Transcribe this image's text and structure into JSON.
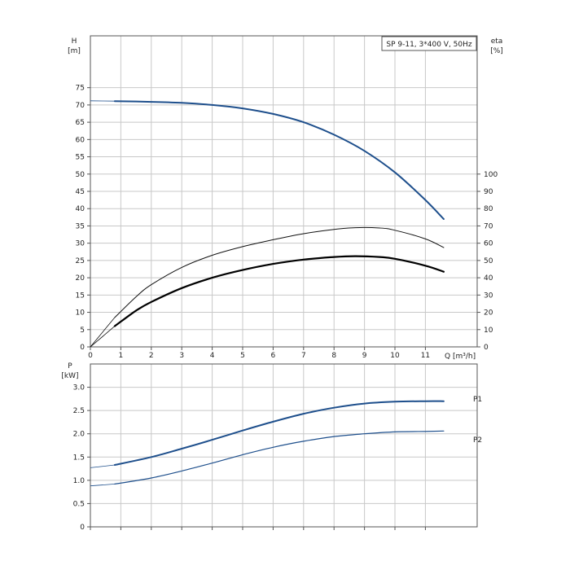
{
  "chart_data": [
    {
      "id": "head_efficiency",
      "type": "line",
      "title": "SP 9-11, 3*400 V, 50Hz",
      "x_label": "Q [m³/h]",
      "x_ticks": [
        0,
        1,
        2,
        3,
        4,
        5,
        6,
        7,
        8,
        9,
        10,
        11
      ],
      "xlim": [
        0,
        12.7
      ],
      "left_axis": {
        "label_top": "H",
        "label_unit": "[m]",
        "ylim": [
          0,
          90
        ],
        "ticks": [
          0,
          5,
          10,
          15,
          20,
          25,
          30,
          35,
          40,
          45,
          50,
          55,
          60,
          65,
          70,
          75
        ]
      },
      "right_axis": {
        "label_top": "eta",
        "label_unit": "[%]",
        "ylim": [
          0,
          180
        ],
        "ticks": [
          0,
          10,
          20,
          30,
          40,
          50,
          60,
          70,
          80,
          90,
          100
        ]
      },
      "grid": true,
      "series": [
        {
          "kind": "head",
          "axis": "left",
          "color": "#1e4f8c",
          "width": 2,
          "x": [
            0,
            0.8,
            2,
            3,
            4,
            5,
            6,
            7,
            8,
            9,
            10,
            11,
            11.6
          ],
          "y": [
            71.2,
            71.1,
            70.9,
            70.6,
            70.0,
            69.0,
            67.4,
            65.0,
            61.4,
            56.7,
            50.5,
            42.5,
            37.0
          ],
          "extended_range": [
            0,
            0.8
          ]
        },
        {
          "kind": "efficiency_overall",
          "axis": "right",
          "color": "#111111",
          "width": 1,
          "x": [
            0,
            0.8,
            1.5,
            2,
            3,
            4,
            5,
            6,
            7,
            8,
            8.7,
            9.5,
            10,
            11,
            11.6
          ],
          "y": [
            0,
            17,
            29,
            36,
            46,
            53,
            58,
            62,
            65.5,
            68,
            69,
            68.8,
            67.5,
            62.5,
            57.5
          ],
          "extended_range": [
            0,
            0.8
          ]
        },
        {
          "kind": "efficiency_hydraulic",
          "axis": "right",
          "color": "#000000",
          "width": 2.2,
          "x": [
            0,
            0.8,
            1.5,
            2,
            3,
            4,
            5,
            6,
            7,
            8,
            8.7,
            9.5,
            10,
            11,
            11.6
          ],
          "y": [
            0,
            12,
            21,
            26,
            34,
            40,
            44.5,
            48,
            50.5,
            52,
            52.5,
            52,
            51,
            47,
            43.5
          ],
          "extended_range": [
            0,
            0.8
          ]
        }
      ]
    },
    {
      "id": "power",
      "type": "line",
      "x_ticks": [
        0,
        1,
        2,
        3,
        4,
        5,
        6,
        7,
        8,
        9,
        10,
        11
      ],
      "xlim": [
        0,
        12.7
      ],
      "left_axis": {
        "label_top": "P",
        "label_unit": "[kW]",
        "ylim": [
          0,
          3.5
        ],
        "ticks": [
          "0",
          "0.5",
          "1.0",
          "1.5",
          "2.0",
          "2.5",
          "3.0"
        ]
      },
      "grid": true,
      "series": [
        {
          "name": "P1",
          "color": "#1e4f8c",
          "width": 2,
          "x": [
            0,
            0.8,
            2,
            3,
            4,
            5,
            6,
            7,
            8,
            9,
            10,
            11,
            11.6
          ],
          "y": [
            1.27,
            1.33,
            1.5,
            1.68,
            1.87,
            2.07,
            2.26,
            2.43,
            2.56,
            2.65,
            2.69,
            2.7,
            2.7
          ],
          "extended_range": [
            0,
            0.8
          ]
        },
        {
          "name": "P2",
          "color": "#1e4f8c",
          "width": 1.2,
          "x": [
            0,
            0.8,
            2,
            3,
            4,
            5,
            6,
            7,
            8,
            9,
            10,
            11,
            11.6
          ],
          "y": [
            0.88,
            0.92,
            1.05,
            1.2,
            1.37,
            1.55,
            1.71,
            1.84,
            1.94,
            2.0,
            2.04,
            2.05,
            2.06
          ],
          "extended_range": [
            0,
            0.8
          ]
        }
      ]
    }
  ]
}
